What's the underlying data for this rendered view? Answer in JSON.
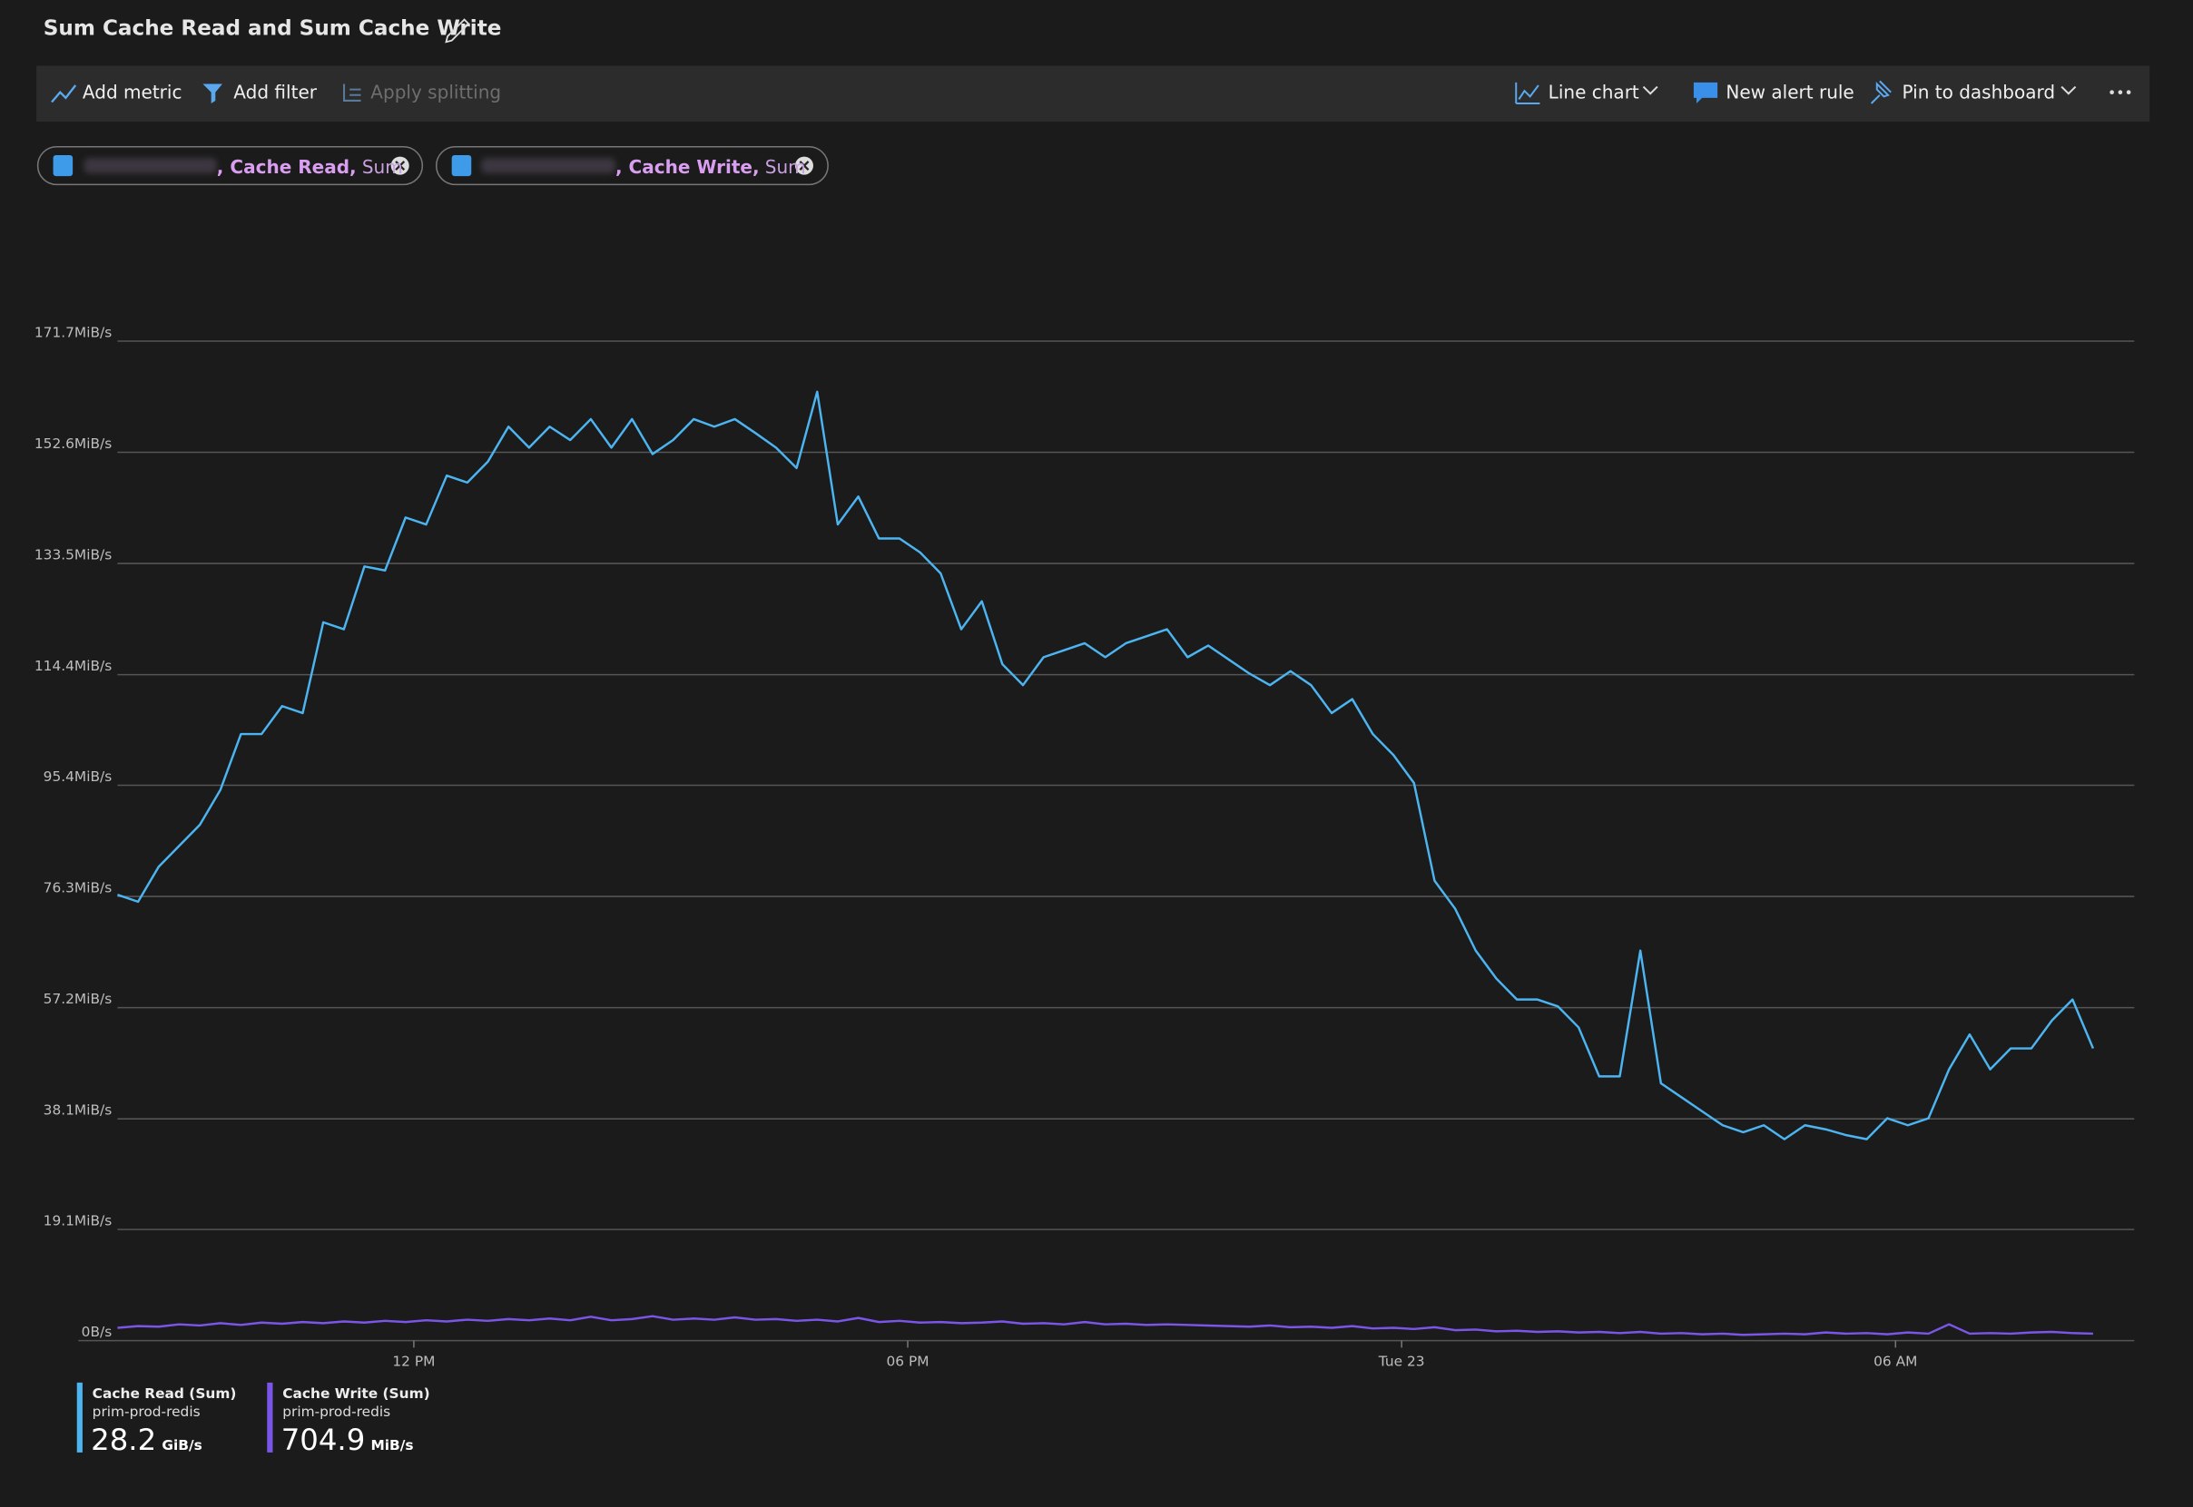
{
  "chart_data": {
    "type": "line",
    "title": "Sum Cache Read and Sum Cache Write",
    "toolbar": [
      "Add metric",
      "Add filter",
      "Apply splitting",
      "Line chart",
      "New alert rule",
      "Pin to dashboard"
    ],
    "chips": [
      {
        "metric": ", Cache Read,",
        "aggregation": "Sum"
      },
      {
        "metric": ", Cache Write,",
        "aggregation": "Sum"
      }
    ],
    "x": [
      8.4,
      8.65,
      8.9,
      9.15,
      9.4,
      9.65,
      9.9,
      10.15,
      10.4,
      10.65,
      10.9,
      11.15,
      11.4,
      11.65,
      11.9,
      12.15,
      12.4,
      12.65,
      12.9,
      13.15,
      13.4,
      13.65,
      13.9,
      14.15,
      14.4,
      14.65,
      14.9,
      15.15,
      15.4,
      15.65,
      15.9,
      16.15,
      16.4,
      16.65,
      16.9,
      17.15,
      17.4,
      17.65,
      17.9,
      18.15,
      18.4,
      18.65,
      18.9,
      19.15,
      19.4,
      19.65,
      19.9,
      20.15,
      20.4,
      20.65,
      20.9,
      21.15,
      21.4,
      21.65,
      21.9,
      22.15,
      22.4,
      22.65,
      22.9,
      23.15,
      23.4,
      23.65,
      23.9,
      24.15,
      24.4,
      24.65,
      24.9,
      25.15,
      25.4,
      25.65,
      25.9,
      26.15,
      26.4,
      26.65,
      26.9,
      27.15,
      27.4,
      27.65,
      27.9,
      28.15,
      28.4,
      28.65,
      28.9,
      29.15,
      29.4,
      29.65,
      29.9,
      30.15,
      30.4,
      30.65,
      30.9,
      31.15,
      31.4,
      31.65,
      31.9,
      32.15,
      32.4
    ],
    "xlim": [
      8.4,
      32.9
    ],
    "xticks": [
      {
        "value": 12,
        "label": "12 PM"
      },
      {
        "value": 18,
        "label": "06 PM"
      },
      {
        "value": 24,
        "label": "Tue 23"
      },
      {
        "value": 30,
        "label": "06 AM"
      }
    ],
    "ylim": [
      0,
      171.7
    ],
    "yticks": [
      {
        "value": 0,
        "label": "0B/s"
      },
      {
        "value": 19.1,
        "label": "19.1MiB/s"
      },
      {
        "value": 38.1,
        "label": "38.1MiB/s"
      },
      {
        "value": 57.2,
        "label": "57.2MiB/s"
      },
      {
        "value": 76.3,
        "label": "76.3MiB/s"
      },
      {
        "value": 95.4,
        "label": "95.4MiB/s"
      },
      {
        "value": 114.4,
        "label": "114.4MiB/s"
      },
      {
        "value": 133.5,
        "label": "133.5MiB/s"
      },
      {
        "value": 152.6,
        "label": "152.6MiB/s"
      },
      {
        "value": 171.7,
        "label": "171.7MiB/s"
      }
    ],
    "grid": true,
    "series": [
      {
        "name": "Cache Read (Sum)",
        "resource": "prim-prod-redis",
        "total": 28.2,
        "total_unit": "GiB/s",
        "color": "#4cb4f0",
        "values": [
          76.6,
          75.4,
          81.4,
          85,
          88.6,
          94.6,
          104.2,
          104.2,
          109,
          107.8,
          123.4,
          122.2,
          133,
          132.3,
          141.4,
          140.2,
          148.6,
          147.4,
          151,
          157,
          153.4,
          157,
          154.7,
          158.3,
          153.4,
          158.3,
          152.3,
          154.7,
          158.3,
          157,
          158.3,
          155.9,
          153.4,
          149.9,
          163,
          140.2,
          145,
          137.8,
          137.8,
          135.4,
          131.8,
          122.2,
          127,
          116.2,
          112.6,
          117.4,
          118.6,
          119.8,
          117.4,
          119.8,
          121,
          122.2,
          117.4,
          119.4,
          117,
          114.6,
          112.6,
          115,
          112.6,
          107.8,
          110.2,
          104.2,
          100.6,
          95.8,
          79,
          74.2,
          67,
          62.2,
          58.6,
          58.6,
          57.4,
          53.8,
          45.4,
          45.4,
          67,
          44.2,
          41.8,
          39.4,
          37,
          35.8,
          37,
          34.6,
          37,
          36.3,
          35.3,
          34.6,
          38.2,
          37,
          38.2,
          46.6,
          52.6,
          46.6,
          50.2,
          50.2,
          55,
          58.6,
          50.2
        ]
      },
      {
        "name": "Cache Write (Sum)",
        "resource": "prim-prod-redis",
        "total": 704.9,
        "total_unit": "MiB/s",
        "color": "#7b55e8",
        "values": [
          2.2,
          2.5,
          2.4,
          2.8,
          2.6,
          3,
          2.7,
          3.1,
          2.9,
          3.2,
          3,
          3.3,
          3.1,
          3.4,
          3.2,
          3.5,
          3.3,
          3.6,
          3.4,
          3.7,
          3.5,
          3.8,
          3.5,
          4.1,
          3.5,
          3.7,
          4.2,
          3.6,
          3.8,
          3.6,
          4,
          3.6,
          3.7,
          3.4,
          3.6,
          3.3,
          3.9,
          3.2,
          3.4,
          3.1,
          3.2,
          3,
          3.1,
          3.3,
          2.9,
          3,
          2.8,
          3.2,
          2.8,
          2.9,
          2.7,
          2.8,
          2.7,
          2.6,
          2.5,
          2.4,
          2.6,
          2.3,
          2.4,
          2.2,
          2.5,
          2.1,
          2.2,
          2,
          2.3,
          1.8,
          1.9,
          1.6,
          1.7,
          1.5,
          1.6,
          1.4,
          1.5,
          1.3,
          1.5,
          1.2,
          1.3,
          1.1,
          1.2,
          1,
          1.1,
          1.2,
          1.1,
          1.4,
          1.2,
          1.3,
          1.1,
          1.4,
          1.2,
          2.8,
          1.2,
          1.3,
          1.2,
          1.4,
          1.5,
          1.3,
          1.2
        ]
      }
    ]
  }
}
